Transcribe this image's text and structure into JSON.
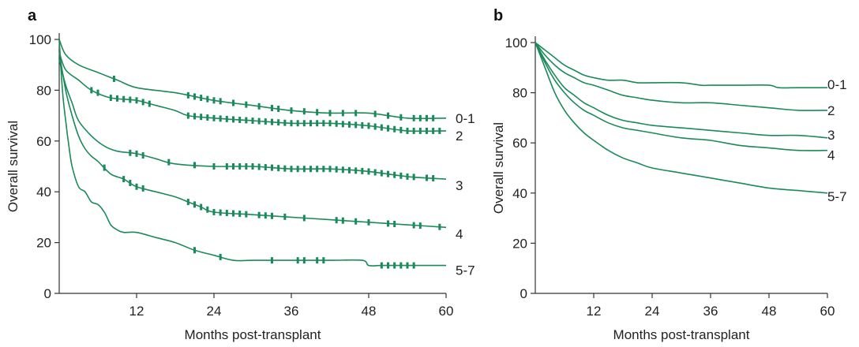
{
  "accent_color": "#1a8a5a",
  "chart_data": [
    {
      "panel_label": "a",
      "type": "line",
      "xlabel": "Months post-transplant",
      "ylabel": "Overall survival",
      "xlim": [
        0,
        60
      ],
      "ylim": [
        0,
        100
      ],
      "xticks": [
        "12",
        "24",
        "36",
        "48",
        "60"
      ],
      "yticks": [
        "0",
        "20",
        "40",
        "60",
        "80",
        "100"
      ],
      "grid": false,
      "series": [
        {
          "name": "0-1",
          "x": [
            0,
            1,
            3,
            6,
            9,
            12,
            18,
            24,
            30,
            36,
            42,
            48,
            54,
            60
          ],
          "y": [
            100,
            94,
            90,
            87,
            84,
            81,
            79,
            76,
            74,
            72,
            71,
            71,
            69,
            69
          ],
          "censor_x": [
            8.5,
            20,
            21,
            22,
            23,
            24,
            25,
            27,
            29,
            31,
            33,
            34,
            36,
            38,
            40,
            42,
            44,
            46,
            49,
            51,
            53,
            55,
            56,
            57,
            58
          ]
        },
        {
          "name": "2",
          "x": [
            0,
            1,
            3,
            5,
            8,
            12,
            15,
            18,
            20,
            24,
            30,
            36,
            42,
            48,
            54,
            60
          ],
          "y": [
            95,
            88,
            84,
            80,
            77,
            76,
            74,
            72,
            70,
            69,
            68,
            67,
            67,
            66,
            64,
            64
          ],
          "censor_x": [
            5,
            6,
            8,
            9,
            10,
            11,
            12,
            13,
            14,
            20,
            21,
            22,
            23,
            24,
            25,
            26,
            27,
            28,
            29,
            30,
            31,
            32,
            33,
            34,
            35,
            36,
            37,
            38,
            39,
            40,
            41,
            42,
            43,
            44,
            45,
            46,
            47,
            48,
            49,
            50,
            51,
            52,
            53,
            54,
            55,
            56,
            57,
            58,
            59
          ]
        },
        {
          "name": "3",
          "x": [
            0,
            1,
            2,
            3,
            5,
            7,
            9,
            12,
            15,
            18,
            24,
            30,
            36,
            42,
            48,
            54,
            60
          ],
          "y": [
            92,
            82,
            75,
            68,
            62,
            58,
            56,
            55,
            53,
            51,
            50,
            50,
            49,
            49,
            48,
            46,
            45
          ],
          "censor_x": [
            11,
            12,
            13,
            17,
            21,
            24,
            26,
            27,
            28,
            29,
            30,
            31,
            32,
            33,
            34,
            35,
            36,
            37,
            38,
            39,
            40,
            41,
            42,
            43,
            44,
            45,
            46,
            47,
            48,
            49,
            50,
            51,
            52,
            53,
            54,
            55,
            57,
            58
          ]
        },
        {
          "name": "4",
          "x": [
            0,
            1,
            2,
            3,
            4,
            5,
            6,
            8,
            10,
            12,
            15,
            18,
            20,
            22,
            24,
            30,
            36,
            42,
            48,
            54,
            60
          ],
          "y": [
            95,
            80,
            70,
            62,
            57,
            54,
            52,
            47,
            45,
            42,
            40,
            38,
            36,
            34,
            32,
            31,
            30,
            29,
            28,
            27,
            26
          ],
          "censor_x": [
            7,
            10,
            11,
            12,
            13,
            20,
            21,
            22,
            23,
            24,
            25,
            26,
            27,
            28,
            29,
            31,
            32,
            33,
            35,
            38,
            43,
            44,
            46,
            48,
            51,
            52,
            55,
            56,
            59
          ]
        },
        {
          "name": "5-7",
          "x": [
            0,
            0.5,
            1,
            1.5,
            2,
            3,
            4,
            5,
            6,
            7,
            8,
            9,
            10,
            12,
            15,
            18,
            21,
            24,
            27,
            30,
            36,
            42,
            47,
            48,
            50,
            54,
            60
          ],
          "y": [
            100,
            80,
            68,
            58,
            50,
            42,
            40,
            36,
            35,
            32,
            27,
            25,
            24,
            24,
            22,
            20,
            17,
            15,
            13,
            13,
            13,
            13,
            13,
            11,
            11,
            11,
            11
          ],
          "censor_x": [
            21,
            25,
            33,
            37,
            38,
            40,
            41,
            50,
            51,
            52,
            53,
            54,
            55
          ]
        }
      ]
    },
    {
      "panel_label": "b",
      "type": "line",
      "xlabel": "Months post-transplant",
      "ylabel": "Overall survival",
      "xlim": [
        0,
        60
      ],
      "ylim": [
        0,
        100
      ],
      "xticks": [
        "12",
        "24",
        "36",
        "48",
        "60"
      ],
      "yticks": [
        "0",
        "20",
        "40",
        "60",
        "80",
        "100"
      ],
      "grid": false,
      "series": [
        {
          "name": "0-1",
          "x": [
            0,
            2,
            4,
            6,
            8,
            10,
            12,
            15,
            18,
            21,
            24,
            30,
            34,
            36,
            42,
            48,
            50,
            54,
            60
          ],
          "y": [
            100,
            97,
            94,
            91,
            89,
            87,
            86,
            85,
            85,
            84,
            84,
            84,
            83,
            83,
            83,
            83,
            82,
            82,
            82
          ]
        },
        {
          "name": "2",
          "x": [
            0,
            2,
            4,
            6,
            8,
            10,
            12,
            15,
            18,
            21,
            24,
            30,
            36,
            42,
            48,
            54,
            60
          ],
          "y": [
            100,
            95,
            91,
            88,
            86,
            84,
            83,
            81,
            79,
            78,
            77,
            76,
            76,
            75,
            74,
            73,
            73
          ]
        },
        {
          "name": "3",
          "x": [
            0,
            2,
            4,
            6,
            8,
            10,
            12,
            15,
            18,
            21,
            24,
            30,
            36,
            42,
            48,
            54,
            60
          ],
          "y": [
            100,
            93,
            87,
            82,
            79,
            76,
            74,
            71,
            69,
            68,
            67,
            66,
            65,
            64,
            63,
            63,
            62
          ]
        },
        {
          "name": "4",
          "x": [
            0,
            2,
            4,
            6,
            8,
            10,
            12,
            15,
            18,
            21,
            24,
            30,
            36,
            42,
            48,
            54,
            60
          ],
          "y": [
            100,
            92,
            85,
            80,
            76,
            73,
            71,
            68,
            66,
            65,
            64,
            62,
            61,
            59,
            58,
            57,
            57
          ]
        },
        {
          "name": "5-7",
          "x": [
            0,
            2,
            4,
            6,
            8,
            10,
            12,
            15,
            18,
            21,
            24,
            30,
            36,
            42,
            48,
            54,
            60
          ],
          "y": [
            100,
            90,
            80,
            73,
            68,
            64,
            61,
            57,
            54,
            52,
            50,
            48,
            46,
            44,
            42,
            41,
            40
          ]
        }
      ]
    }
  ]
}
